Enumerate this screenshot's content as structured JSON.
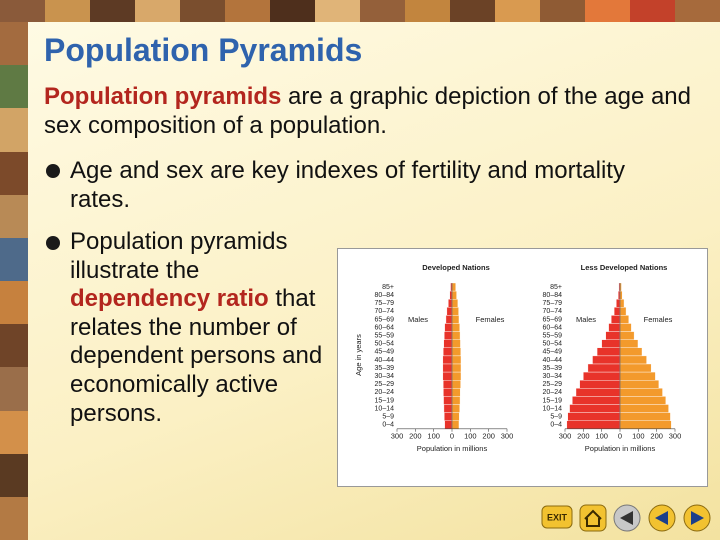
{
  "header": {
    "title": "Population Pyramids"
  },
  "intro": {
    "term": "Population pyramids",
    "text": " are a graphic depiction of the age and sex composition of a population."
  },
  "bullets": [
    {
      "text": "Age and sex are key indexes of fertility and mortality rates."
    },
    {
      "parts": [
        "Population pyramids illustrate the ",
        "dependency ratio",
        " that relates the number of dependent persons and economically active persons."
      ]
    }
  ],
  "nav": {
    "exit": "EXIT"
  },
  "chart_data": [
    {
      "type": "pyramid",
      "title": "Developed Nations",
      "xlabel": "Population in millions",
      "ylabel": "Age in years",
      "categories": [
        "85+",
        "80–84",
        "75–79",
        "70–74",
        "65–69",
        "60–64",
        "55–59",
        "50–54",
        "45–49",
        "40–44",
        "35–39",
        "30–34",
        "25–29",
        "20–24",
        "15–19",
        "10–14",
        "5–9",
        "0–4"
      ],
      "series": [
        {
          "name": "Males",
          "color": "#e8332a",
          "values": [
            8,
            12,
            20,
            28,
            33,
            40,
            42,
            45,
            48,
            50,
            50,
            50,
            48,
            47,
            46,
            44,
            42,
            40
          ]
        },
        {
          "name": "Females",
          "color": "#f39a2c",
          "values": [
            20,
            25,
            32,
            36,
            38,
            42,
            44,
            46,
            48,
            49,
            49,
            49,
            47,
            45,
            44,
            42,
            40,
            38
          ]
        }
      ],
      "xlim": [
        -300,
        300
      ],
      "xticks": [
        {
          "value": -300,
          "label": "300"
        },
        {
          "value": -200,
          "label": "200"
        },
        {
          "value": -100,
          "label": "100"
        },
        0,
        100,
        200,
        300
      ]
    },
    {
      "type": "pyramid",
      "title": "Less Developed Nations",
      "xlabel": "Population in millions",
      "categories": [
        "85+",
        "80–84",
        "75–79",
        "70–74",
        "65–69",
        "60–64",
        "55–59",
        "50–54",
        "45–49",
        "40–44",
        "35–39",
        "30–34",
        "25–29",
        "20–24",
        "15–19",
        "10–14",
        "5–9",
        "0–4"
      ],
      "series": [
        {
          "name": "Males",
          "color": "#e8332a",
          "values": [
            6,
            10,
            20,
            32,
            48,
            62,
            78,
            100,
            125,
            150,
            175,
            200,
            220,
            240,
            260,
            275,
            285,
            290
          ]
        },
        {
          "name": "Females",
          "color": "#f39a2c",
          "values": [
            8,
            12,
            22,
            33,
            48,
            62,
            77,
            98,
            120,
            145,
            170,
            193,
            212,
            232,
            250,
            265,
            275,
            280
          ]
        }
      ],
      "xlim": [
        -300,
        300
      ],
      "xticks": [
        {
          "value": -300,
          "label": "300"
        },
        {
          "value": -200,
          "label": "200"
        },
        {
          "value": -100,
          "label": "100"
        },
        0,
        100,
        200,
        300
      ]
    }
  ]
}
